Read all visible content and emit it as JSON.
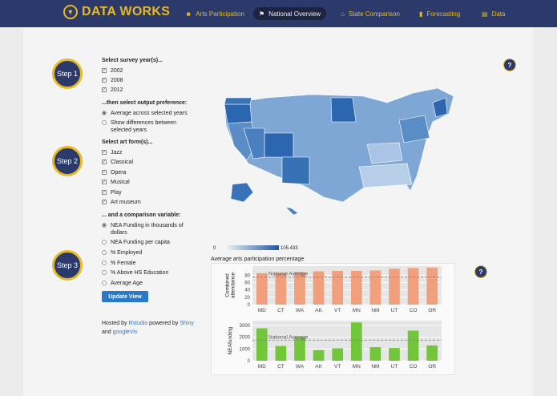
{
  "brand": {
    "name": "DATA WORKS"
  },
  "nav": [
    {
      "label": "Arts Participation",
      "icon": "person-icon"
    },
    {
      "label": "National Overview",
      "icon": "flag-icon"
    },
    {
      "label": "State Comparison",
      "icon": "home-icon"
    },
    {
      "label": "Forecasting",
      "icon": "bar-chart-icon"
    },
    {
      "label": "Data",
      "icon": "hdd-icon"
    }
  ],
  "steps": [
    "Step 1",
    "Step 2",
    "Step 3"
  ],
  "form": {
    "years_label": "Select survey year(s)...",
    "years": [
      "2002",
      "2008",
      "2012"
    ],
    "output_label": "...then select output preference:",
    "output_options": [
      "Average across selected years",
      "Show differences between selected years"
    ],
    "art_label": "Select art form(s)...",
    "art_forms": [
      "Jazz",
      "Classical",
      "Opera",
      "Musical",
      "Play",
      "Art museum"
    ],
    "comparison_label": "... and a comparison variable:",
    "comparison_options": [
      "NEA Funding in thousands of dollars",
      "NEA Funding per capita",
      "% Employed",
      "% Female",
      "% Above HS Education",
      "Average Age"
    ],
    "update_button": "Update View"
  },
  "footer": {
    "hosted": "Hosted by",
    "rstudio": "Rstudio",
    "powered": "powered by",
    "shiny": "Shiny",
    "and": "and",
    "googlevis": "googleVis"
  },
  "map": {
    "legend_min": "0",
    "legend_max": "105.433",
    "colors": {
      "low": "#e9f0f8",
      "high": "#1c56a0"
    }
  },
  "chart_title": "Average arts participation percentage",
  "chart_data": [
    {
      "type": "bar",
      "categories": [
        "MD",
        "CT",
        "WA",
        "AK",
        "VT",
        "MN",
        "NM",
        "UT",
        "CO",
        "OR"
      ],
      "values": [
        86,
        86,
        89,
        91,
        92,
        92,
        93,
        98,
        100,
        101
      ],
      "ylabel": "Combined attendance",
      "yticks": [
        0,
        20,
        40,
        60,
        80
      ],
      "ylim": [
        0,
        105
      ],
      "reference_line": {
        "label": "National Average",
        "value": 75
      },
      "color": "#f0a07c"
    },
    {
      "type": "bar",
      "categories": [
        "MD",
        "CT",
        "WA",
        "AK",
        "VT",
        "MN",
        "NM",
        "UT",
        "CO",
        "OR"
      ],
      "values": [
        2750,
        1250,
        2000,
        900,
        1050,
        3250,
        1150,
        1080,
        2550,
        1300
      ],
      "ylabel": "NEAfunding",
      "yticks": [
        0,
        1000,
        2000,
        3000
      ],
      "ylim": [
        0,
        3400
      ],
      "reference_line": {
        "label": "National Average",
        "value": 1750
      },
      "color": "#72c63a"
    }
  ]
}
